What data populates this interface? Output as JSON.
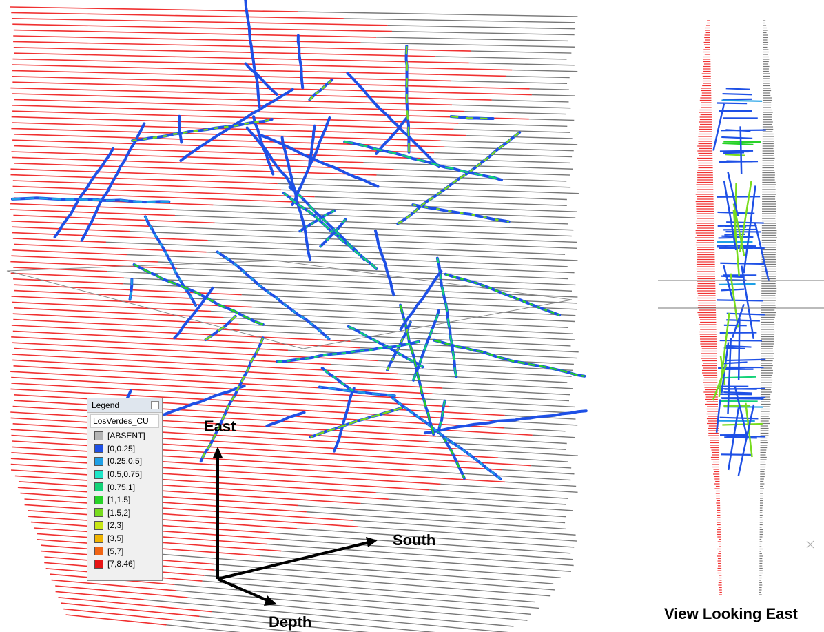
{
  "legend": {
    "title": "Legend",
    "layer": "LosVerdes_CU",
    "entries": [
      {
        "label": "[ABSENT]",
        "color": "#b4b4b4"
      },
      {
        "label": "[0,0.25]",
        "color": "#1e50e6"
      },
      {
        "label": "[0.25,0.5]",
        "color": "#1ea0e6"
      },
      {
        "label": "[0.5,0.75]",
        "color": "#1ee6c8"
      },
      {
        "label": "[0.75,1]",
        "color": "#14d278"
      },
      {
        "label": "[1,1.5]",
        "color": "#28d228"
      },
      {
        "label": "[1.5,2]",
        "color": "#78dc1e"
      },
      {
        "label": "[2,3]",
        "color": "#c8e614"
      },
      {
        "label": "[3,5]",
        "color": "#f0b400"
      },
      {
        "label": "[5,7]",
        "color": "#f06414"
      },
      {
        "label": "[7,8.46]",
        "color": "#e61414"
      }
    ]
  },
  "axes": {
    "up": "East",
    "right": "South",
    "down": "Depth"
  },
  "side_view": {
    "caption": "View Looking East"
  }
}
